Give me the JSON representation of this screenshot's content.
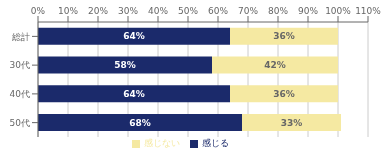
{
  "chart_data": {
    "type": "bar",
    "orientation": "horizontal",
    "stacked": true,
    "categories": [
      "総計",
      "30代",
      "40代",
      "50代"
    ],
    "series": [
      {
        "name": "感じる",
        "color": "#1b2a6b",
        "values": [
          64,
          58,
          64,
          68
        ],
        "value_labels": [
          "64%",
          "58%",
          "64%",
          "68%"
        ]
      },
      {
        "name": "感じない",
        "color": "#f5e9a2",
        "values": [
          36,
          42,
          36,
          33
        ],
        "value_labels": [
          "36%",
          "42%",
          "36%",
          "33%"
        ]
      }
    ],
    "xlim": [
      0,
      110
    ],
    "xticks": [
      {
        "value": 0,
        "label": "0%"
      },
      {
        "value": 10,
        "label": "10%"
      },
      {
        "value": 20,
        "label": "20%"
      },
      {
        "value": 30,
        "label": "30%"
      },
      {
        "value": 40,
        "label": "40%"
      },
      {
        "value": 50,
        "label": "50%"
      },
      {
        "value": 60,
        "label": "60%"
      },
      {
        "value": 70,
        "label": "70%"
      },
      {
        "value": 80,
        "label": "80%"
      },
      {
        "value": 90,
        "label": "90%"
      },
      {
        "value": 100,
        "label": "100%"
      },
      {
        "value": 110,
        "label": "110%"
      }
    ],
    "grid": true,
    "legend": "bottom",
    "data_labels": true
  }
}
